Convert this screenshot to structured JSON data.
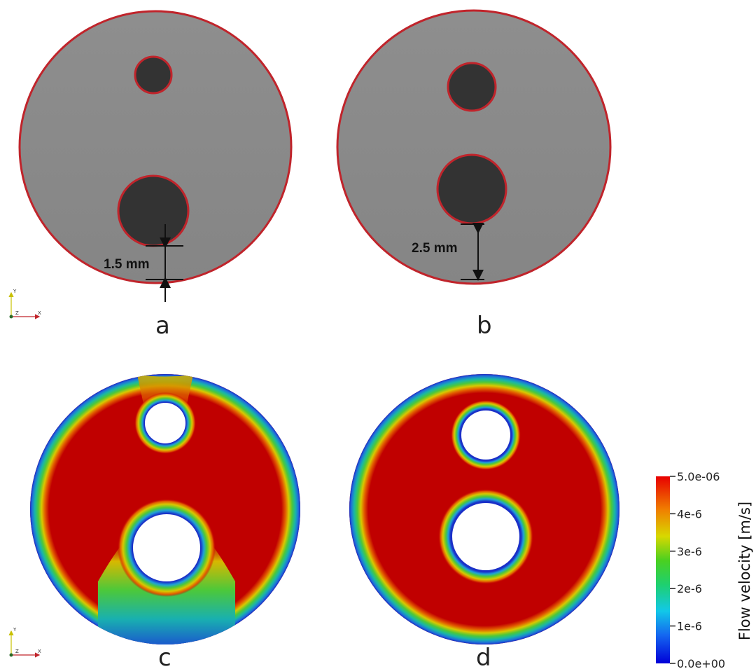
{
  "panels": {
    "a": {
      "label": "a",
      "dimension": "1.5 mm"
    },
    "b": {
      "label": "b",
      "dimension": "2.5 mm"
    },
    "c": {
      "label": "c"
    },
    "d": {
      "label": "d"
    }
  },
  "axes_triad": {
    "y": "Y",
    "z": "Z",
    "x": "X"
  },
  "colors": {
    "domain_gray": "#8a8a8a",
    "inclusion_dark": "#333333",
    "outline_red": "#c0242b",
    "flow_high": "#c00000"
  },
  "colorbar": {
    "title": "Flow velocity [m/s]",
    "ticks": [
      "5.0e-06",
      "4e-6",
      "3e-6",
      "2e-6",
      "1e-6",
      "0.0e+00"
    ],
    "range": [
      0,
      5e-06
    ]
  }
}
